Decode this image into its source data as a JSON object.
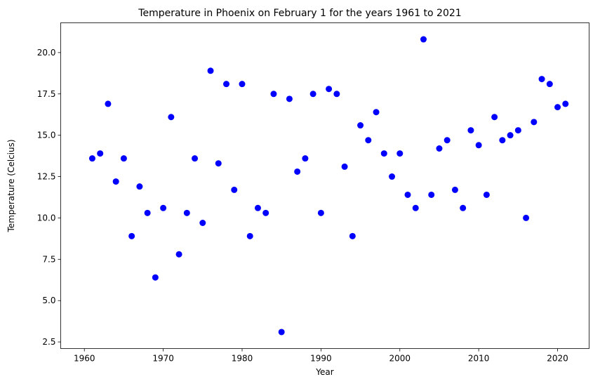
{
  "chart_data": {
    "type": "scatter",
    "title": "Temperature in Phoenix on February 1 for the years 1961 to 2021",
    "xlabel": "Year",
    "ylabel": "Temperature (Celcius)",
    "xlim": [
      1957.0,
      2024.0
    ],
    "ylim": [
      2.1,
      21.8
    ],
    "xticks": [
      1960,
      1970,
      1980,
      1990,
      2000,
      2010,
      2020
    ],
    "yticks": [
      2.5,
      5.0,
      7.5,
      10.0,
      12.5,
      15.0,
      17.5,
      20.0
    ],
    "xtick_labels": [
      "1960",
      "1970",
      "1980",
      "1990",
      "2000",
      "2010",
      "2020"
    ],
    "ytick_labels": [
      "2.5",
      "5.0",
      "7.5",
      "10.0",
      "12.5",
      "15.0",
      "17.5",
      "20.0"
    ],
    "grid": false,
    "marker_color": "#0000ff",
    "points": [
      {
        "x": 1961,
        "y": 13.6
      },
      {
        "x": 1962,
        "y": 13.9
      },
      {
        "x": 1963,
        "y": 16.9
      },
      {
        "x": 1964,
        "y": 12.2
      },
      {
        "x": 1965,
        "y": 13.6
      },
      {
        "x": 1966,
        "y": 8.9
      },
      {
        "x": 1967,
        "y": 11.9
      },
      {
        "x": 1968,
        "y": 10.3
      },
      {
        "x": 1969,
        "y": 6.4
      },
      {
        "x": 1970,
        "y": 10.6
      },
      {
        "x": 1971,
        "y": 16.1
      },
      {
        "x": 1972,
        "y": 7.8
      },
      {
        "x": 1973,
        "y": 10.3
      },
      {
        "x": 1974,
        "y": 13.6
      },
      {
        "x": 1975,
        "y": 9.7
      },
      {
        "x": 1976,
        "y": 18.9
      },
      {
        "x": 1977,
        "y": 13.3
      },
      {
        "x": 1978,
        "y": 18.1
      },
      {
        "x": 1979,
        "y": 11.7
      },
      {
        "x": 1980,
        "y": 18.1
      },
      {
        "x": 1981,
        "y": 8.9
      },
      {
        "x": 1982,
        "y": 10.6
      },
      {
        "x": 1983,
        "y": 10.3
      },
      {
        "x": 1984,
        "y": 17.5
      },
      {
        "x": 1985,
        "y": 3.1
      },
      {
        "x": 1986,
        "y": 17.2
      },
      {
        "x": 1987,
        "y": 12.8
      },
      {
        "x": 1988,
        "y": 13.6
      },
      {
        "x": 1989,
        "y": 17.5
      },
      {
        "x": 1990,
        "y": 10.3
      },
      {
        "x": 1991,
        "y": 17.8
      },
      {
        "x": 1992,
        "y": 17.5
      },
      {
        "x": 1993,
        "y": 13.1
      },
      {
        "x": 1994,
        "y": 8.9
      },
      {
        "x": 1995,
        "y": 15.6
      },
      {
        "x": 1996,
        "y": 14.7
      },
      {
        "x": 1997,
        "y": 16.4
      },
      {
        "x": 1998,
        "y": 13.9
      },
      {
        "x": 1999,
        "y": 12.5
      },
      {
        "x": 2000,
        "y": 13.9
      },
      {
        "x": 2001,
        "y": 11.4
      },
      {
        "x": 2002,
        "y": 10.6
      },
      {
        "x": 2003,
        "y": 20.8
      },
      {
        "x": 2004,
        "y": 11.4
      },
      {
        "x": 2005,
        "y": 14.2
      },
      {
        "x": 2006,
        "y": 14.7
      },
      {
        "x": 2007,
        "y": 11.7
      },
      {
        "x": 2008,
        "y": 10.6
      },
      {
        "x": 2009,
        "y": 15.3
      },
      {
        "x": 2010,
        "y": 14.4
      },
      {
        "x": 2011,
        "y": 11.4
      },
      {
        "x": 2012,
        "y": 16.1
      },
      {
        "x": 2013,
        "y": 14.7
      },
      {
        "x": 2014,
        "y": 15.0
      },
      {
        "x": 2015,
        "y": 15.3
      },
      {
        "x": 2016,
        "y": 10.0
      },
      {
        "x": 2017,
        "y": 15.8
      },
      {
        "x": 2018,
        "y": 18.4
      },
      {
        "x": 2019,
        "y": 18.1
      },
      {
        "x": 2020,
        "y": 16.7
      },
      {
        "x": 2021,
        "y": 16.9
      }
    ]
  }
}
